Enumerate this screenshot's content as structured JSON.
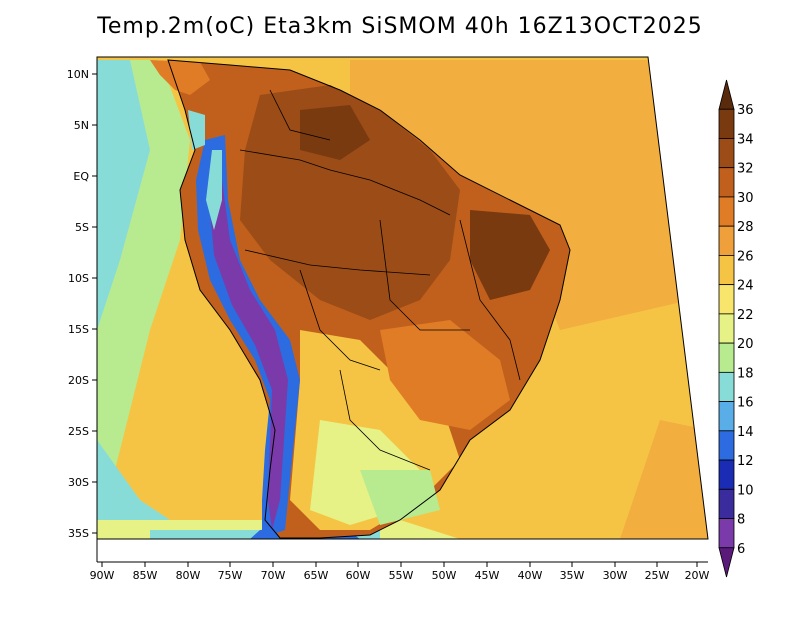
{
  "title": "Temp.2m(oC) Eta3km SiSMOM 40h 16Z13OCT2025",
  "latitude_labels": [
    "10N",
    "5N",
    "EQ",
    "5S",
    "10S",
    "15S",
    "20S",
    "25S",
    "30S",
    "35S"
  ],
  "longitude_labels": [
    "90W",
    "85W",
    "80W",
    "75W",
    "70W",
    "65W",
    "60W",
    "55W",
    "50W",
    "45W",
    "40W",
    "35W",
    "30W",
    "25W",
    "20W"
  ],
  "colorbar": {
    "labels": [
      "36",
      "34",
      "32",
      "30",
      "28",
      "26",
      "24",
      "22",
      "20",
      "18",
      "16",
      "14",
      "12",
      "10",
      "8",
      "6"
    ],
    "colors": [
      "#5a2a0c",
      "#7a3a10",
      "#9c4c16",
      "#c0601c",
      "#e07c26",
      "#f0a03a",
      "#f6c444",
      "#f8e66c",
      "#e6f286",
      "#b8ea90",
      "#88dcd8",
      "#5aaee8",
      "#2c6ce0",
      "#1a2cb4",
      "#3a2c9c",
      "#7a3aaa",
      "#5a1a7a"
    ]
  },
  "colors": {
    "ocean": "#f6c444",
    "land_hot": "#c0601c",
    "land_very_hot": "#7a3a10",
    "andes": "#2c6ce0",
    "cool_south": "#e6f286"
  }
}
